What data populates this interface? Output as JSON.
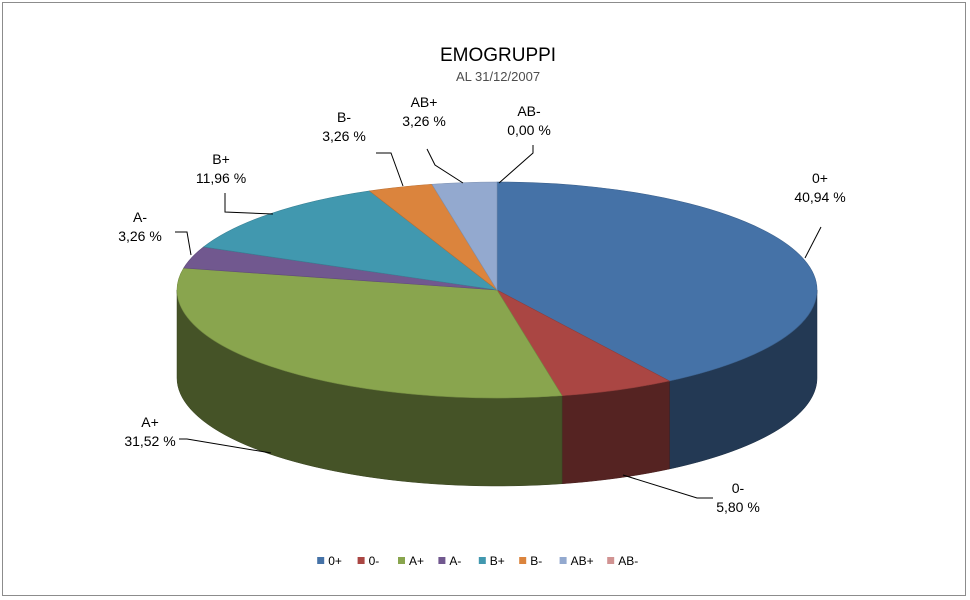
{
  "chart_data": {
    "type": "pie",
    "title": "EMOGRUPPI",
    "subtitle": "AL 31/12/2007",
    "legend_position": "bottom",
    "slices": [
      {
        "label": "0+",
        "value": 40.94,
        "display": "40,94 %",
        "color": "#4572a7"
      },
      {
        "label": "0-",
        "value": 5.8,
        "display": "5,80 %",
        "color": "#aa4643"
      },
      {
        "label": "A+",
        "value": 31.52,
        "display": "31,52 %",
        "color": "#89a54e"
      },
      {
        "label": "A-",
        "value": 3.26,
        "display": "3,26 %",
        "color": "#71588f"
      },
      {
        "label": "B+",
        "value": 11.96,
        "display": "11,96 %",
        "color": "#4198af"
      },
      {
        "label": "B-",
        "value": 3.26,
        "display": "3,26 %",
        "color": "#db843d"
      },
      {
        "label": "AB+",
        "value": 3.26,
        "display": "3,26 %",
        "color": "#93a9cf"
      },
      {
        "label": "AB-",
        "value": 0.0,
        "display": "0,00 %",
        "color": "#d19392"
      }
    ]
  }
}
